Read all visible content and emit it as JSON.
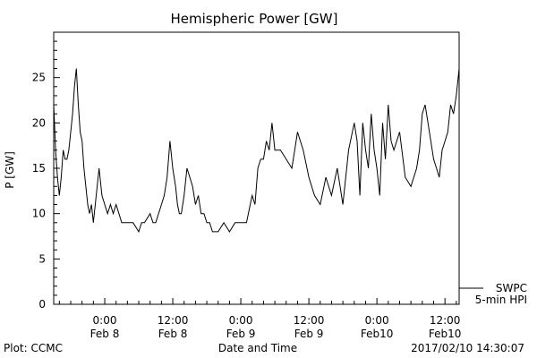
{
  "chart_data": {
    "type": "line",
    "title": "Hemispheric Power [GW]",
    "xlabel": "Date and Time",
    "ylabel": "P [GW]",
    "ylim": [
      0,
      30
    ],
    "yticks": [
      0,
      5,
      10,
      15,
      20,
      25
    ],
    "xlim": [
      "2017-02-07 15:00",
      "2017-02-10 14:30"
    ],
    "xticks": [
      {
        "t": "2017-02-08 00:00",
        "time": "0:00",
        "date": "Feb 8"
      },
      {
        "t": "2017-02-08 12:00",
        "time": "12:00",
        "date": "Feb 8"
      },
      {
        "t": "2017-02-09 00:00",
        "time": "0:00",
        "date": "Feb 9"
      },
      {
        "t": "2017-02-09 12:00",
        "time": "12:00",
        "date": "Feb 9"
      },
      {
        "t": "2017-02-10 00:00",
        "time": "0:00",
        "date": "Feb10"
      },
      {
        "t": "2017-02-10 12:00",
        "time": "12:00",
        "date": "Feb10"
      }
    ],
    "grid": false,
    "legend": {
      "position": "bottom-right",
      "lines": [
        "SWPC",
        "5-min HPI"
      ]
    },
    "series": [
      {
        "name": "SWPC 5-min HPI",
        "color": "#000000",
        "x": [
          "2017-02-07 15:00",
          "2017-02-07 15:20",
          "2017-02-07 15:40",
          "2017-02-07 16:00",
          "2017-02-07 16:20",
          "2017-02-07 16:40",
          "2017-02-07 17:00",
          "2017-02-07 17:20",
          "2017-02-07 17:40",
          "2017-02-07 18:00",
          "2017-02-07 18:20",
          "2017-02-07 18:40",
          "2017-02-07 19:00",
          "2017-02-07 19:20",
          "2017-02-07 19:40",
          "2017-02-07 20:00",
          "2017-02-07 20:20",
          "2017-02-07 20:40",
          "2017-02-07 21:00",
          "2017-02-07 21:20",
          "2017-02-07 21:40",
          "2017-02-07 22:00",
          "2017-02-07 22:30",
          "2017-02-07 23:00",
          "2017-02-07 23:30",
          "2017-02-08 00:00",
          "2017-02-08 00:30",
          "2017-02-08 01:00",
          "2017-02-08 01:30",
          "2017-02-08 02:00",
          "2017-02-08 02:30",
          "2017-02-08 03:00",
          "2017-02-08 04:00",
          "2017-02-08 05:00",
          "2017-02-08 06:00",
          "2017-02-08 06:30",
          "2017-02-08 07:00",
          "2017-02-08 08:00",
          "2017-02-08 08:30",
          "2017-02-08 09:00",
          "2017-02-08 10:00",
          "2017-02-08 10:30",
          "2017-02-08 11:00",
          "2017-02-08 11:30",
          "2017-02-08 12:00",
          "2017-02-08 12:30",
          "2017-02-08 12:50",
          "2017-02-08 13:10",
          "2017-02-08 13:30",
          "2017-02-08 14:00",
          "2017-02-08 14:30",
          "2017-02-08 15:00",
          "2017-02-08 15:30",
          "2017-02-08 16:00",
          "2017-02-08 16:30",
          "2017-02-08 17:00",
          "2017-02-08 17:30",
          "2017-02-08 18:00",
          "2017-02-08 18:30",
          "2017-02-08 19:00",
          "2017-02-08 20:00",
          "2017-02-08 21:00",
          "2017-02-08 22:00",
          "2017-02-08 23:00",
          "2017-02-09 00:00",
          "2017-02-09 01:00",
          "2017-02-09 02:00",
          "2017-02-09 02:30",
          "2017-02-09 03:00",
          "2017-02-09 03:30",
          "2017-02-09 04:00",
          "2017-02-09 04:30",
          "2017-02-09 05:00",
          "2017-02-09 05:30",
          "2017-02-09 06:00",
          "2017-02-09 06:30",
          "2017-02-09 07:00",
          "2017-02-09 08:00",
          "2017-02-09 09:00",
          "2017-02-09 09:30",
          "2017-02-09 10:00",
          "2017-02-09 11:00",
          "2017-02-09 12:00",
          "2017-02-09 13:00",
          "2017-02-09 14:00",
          "2017-02-09 15:00",
          "2017-02-09 16:00",
          "2017-02-09 17:00",
          "2017-02-09 17:30",
          "2017-02-09 18:00",
          "2017-02-09 18:30",
          "2017-02-09 19:00",
          "2017-02-09 20:00",
          "2017-02-09 20:30",
          "2017-02-09 21:00",
          "2017-02-09 21:30",
          "2017-02-09 22:00",
          "2017-02-09 22:30",
          "2017-02-09 23:00",
          "2017-02-09 23:30",
          "2017-02-10 00:00",
          "2017-02-10 00:30",
          "2017-02-10 01:00",
          "2017-02-10 01:30",
          "2017-02-10 02:00",
          "2017-02-10 02:30",
          "2017-02-10 03:00",
          "2017-02-10 04:00",
          "2017-02-10 05:00",
          "2017-02-10 06:00",
          "2017-02-10 07:00",
          "2017-02-10 07:30",
          "2017-02-10 08:00",
          "2017-02-10 08:30",
          "2017-02-10 09:00",
          "2017-02-10 10:00",
          "2017-02-10 10:30",
          "2017-02-10 11:00",
          "2017-02-10 11:30",
          "2017-02-10 12:00",
          "2017-02-10 12:30",
          "2017-02-10 13:00",
          "2017-02-10 13:30",
          "2017-02-10 14:00",
          "2017-02-10 14:30"
        ],
        "y": [
          22,
          17,
          14,
          12,
          14,
          17,
          16,
          16,
          17,
          19,
          21,
          24,
          26,
          22,
          19,
          18,
          15,
          13,
          11,
          10,
          11,
          9,
          12,
          15,
          12,
          11,
          10,
          11,
          10,
          11,
          10,
          9,
          9,
          9,
          8,
          9,
          9,
          10,
          9,
          9,
          11,
          12,
          14,
          18,
          15,
          13,
          11,
          10,
          10,
          12,
          15,
          14,
          13,
          11,
          12,
          10,
          10,
          9,
          9,
          8,
          8,
          9,
          8,
          9,
          9,
          9,
          12,
          11,
          15,
          16,
          16,
          18,
          17,
          20,
          17,
          17,
          17,
          16,
          15,
          17,
          19,
          17,
          14,
          12,
          11,
          14,
          12,
          15,
          13,
          11,
          14,
          17,
          20,
          18,
          12,
          20,
          17,
          15,
          21,
          17,
          15,
          12,
          20,
          16,
          22,
          18,
          17,
          19,
          14,
          13,
          15,
          17,
          21,
          22,
          20,
          16,
          15,
          14,
          17,
          18,
          19,
          22,
          21,
          23,
          26
        ]
      }
    ]
  },
  "footer": {
    "plot_credit": "Plot: CCMC",
    "timestamp": "2017/02/10 14:30:07"
  }
}
